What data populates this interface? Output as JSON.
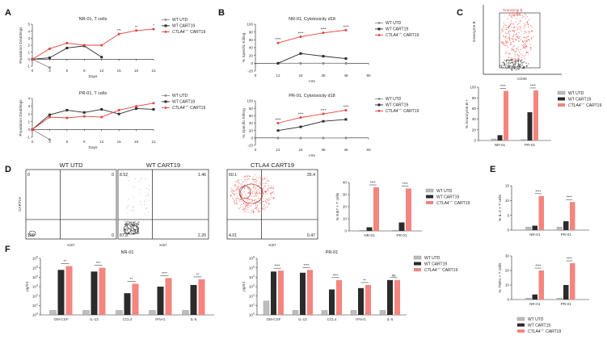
{
  "colors": {
    "utd": "#8a8a8a",
    "cart19": "#2b2b2b",
    "ctla4": "#e8413c",
    "ctla4_light": "#f4857f"
  },
  "panels": {
    "A": "A",
    "B": "B",
    "C": "C",
    "D": "D",
    "E": "E",
    "F": "F"
  },
  "legend_labels": {
    "utd": "WT UTD",
    "cart19": "WT CART19",
    "ctla4": "CTLA4",
    "ctla4_sup": "−/−",
    "ctla4_suffix": " CART19"
  },
  "chart_data": [
    {
      "id": "A1",
      "type": "line",
      "title": "NR-01, T cells",
      "xlabel": "Days",
      "ylabel": "Population Doublings",
      "x": [
        0,
        3,
        6,
        9,
        12,
        15,
        18,
        21
      ],
      "xticks": [
        0,
        3,
        6,
        9,
        12,
        15,
        18,
        21
      ],
      "ylim": [
        -1,
        5
      ],
      "yticks": [
        -1,
        0,
        1,
        2,
        3,
        4,
        5
      ],
      "series": [
        {
          "name": "WT UTD",
          "key": "utd",
          "x": [
            0,
            3
          ],
          "values": [
            0,
            -1.2
          ]
        },
        {
          "name": "WT CART19",
          "key": "cart19",
          "x": [
            0,
            3,
            6,
            9,
            12
          ],
          "values": [
            0,
            0.2,
            1.6,
            1.9,
            0.3
          ]
        },
        {
          "name": "CTLA4 CART19",
          "key": "ctla4",
          "x": [
            0,
            3,
            6,
            9,
            12,
            15,
            18,
            21
          ],
          "values": [
            0,
            1.5,
            2.3,
            2.0,
            2.0,
            3.6,
            4.1,
            4.3
          ]
        }
      ],
      "annotations": [
        "***",
        "**",
        "*"
      ]
    },
    {
      "id": "A2",
      "type": "line",
      "title": "PR-01, T cells",
      "xlabel": "Days",
      "ylabel": "Population Doublings",
      "xticks": [
        0,
        3,
        6,
        9,
        12,
        15,
        18,
        21
      ],
      "ylim": [
        -1,
        4
      ],
      "yticks": [
        -1,
        0,
        1,
        2,
        3,
        4
      ],
      "series": [
        {
          "name": "WT UTD",
          "key": "utd",
          "x": [
            0,
            3
          ],
          "values": [
            0,
            -1.3
          ]
        },
        {
          "name": "WT CART19",
          "key": "cart19",
          "x": [
            0,
            3,
            6,
            9,
            12,
            15,
            18,
            21
          ],
          "values": [
            0,
            1.9,
            2.5,
            2.2,
            2.6,
            2.0,
            2.7,
            2.6
          ]
        },
        {
          "name": "CTLA4 CART19",
          "key": "ctla4",
          "x": [
            0,
            3,
            6,
            9,
            12,
            15,
            18,
            21
          ],
          "values": [
            0,
            1.6,
            1.5,
            1.7,
            1.6,
            2.5,
            3.0,
            3.4
          ]
        }
      ]
    },
    {
      "id": "B1",
      "type": "line",
      "title": "NR-01, Cytotoxicity d18",
      "xlabel": "Hrs",
      "ylabel": "% Specific Killing",
      "xticks": [
        0,
        12,
        24,
        36,
        48,
        60
      ],
      "ylim": [
        -20,
        100
      ],
      "yticks": [
        -20,
        0,
        20,
        40,
        60,
        80,
        100
      ],
      "series": [
        {
          "name": "WT UTD",
          "key": "utd",
          "x": [
            12,
            24,
            36,
            48
          ],
          "values": [
            0,
            0,
            0,
            0
          ]
        },
        {
          "name": "WT CART19",
          "key": "cart19",
          "x": [
            12,
            24,
            36,
            48
          ],
          "values": [
            0,
            25,
            18,
            12
          ]
        },
        {
          "name": "CTLA4 CART19",
          "key": "ctla4",
          "x": [
            12,
            24,
            36,
            48
          ],
          "values": [
            52,
            68,
            78,
            85
          ]
        }
      ],
      "annotations": [
        "****",
        "****",
        "****",
        "****"
      ]
    },
    {
      "id": "B2",
      "type": "line",
      "title": "PR-01, Cytotoxicity d18",
      "xlabel": "Hrs",
      "ylabel": "% Specific Killing",
      "xticks": [
        0,
        12,
        24,
        36,
        48,
        60
      ],
      "ylim": [
        -20,
        100
      ],
      "yticks": [
        -20,
        0,
        20,
        40,
        60,
        80,
        100
      ],
      "series": [
        {
          "name": "WT UTD",
          "key": "utd",
          "x": [
            12,
            24,
            36,
            48
          ],
          "values": [
            0,
            0,
            0,
            0
          ]
        },
        {
          "name": "WT CART19",
          "key": "cart19",
          "x": [
            12,
            24,
            36,
            48
          ],
          "values": [
            20,
            30,
            45,
            50
          ]
        },
        {
          "name": "CTLA4 CART19",
          "key": "ctla4",
          "x": [
            12,
            24,
            36,
            48
          ],
          "values": [
            40,
            55,
            65,
            75
          ]
        }
      ],
      "annotations": [
        "****",
        "****",
        "****",
        "****"
      ]
    },
    {
      "id": "C",
      "type": "bar",
      "ylabel": "% Granzyme B +",
      "categories": [
        "NR-01",
        "PR-01"
      ],
      "ylim": [
        0,
        100
      ],
      "yticks": [
        0,
        20,
        40,
        60,
        80,
        100
      ],
      "series": [
        {
          "name": "WT UTD",
          "key": "utd",
          "values": [
            3,
            2
          ]
        },
        {
          "name": "WT CART19",
          "key": "cart19",
          "values": [
            10,
            53
          ]
        },
        {
          "name": "CTLA4 CART19",
          "key": "ctla4",
          "values": [
            93,
            94
          ]
        }
      ],
      "annotations": [
        "****",
        "****",
        "****",
        "****"
      ]
    },
    {
      "id": "D",
      "type": "bar",
      "ylabel": "% Ki67 + T cells",
      "categories": [
        "NR-01",
        "PR-01"
      ],
      "ylim": [
        0,
        40
      ],
      "yticks": [
        0,
        10,
        20,
        30,
        40
      ],
      "series": [
        {
          "name": "WT UTD",
          "key": "utd",
          "values": [
            0.5,
            0.5
          ]
        },
        {
          "name": "WT CART19",
          "key": "cart19",
          "values": [
            3,
            7
          ]
        },
        {
          "name": "CTLA4 CART19",
          "key": "ctla4",
          "values": [
            36,
            35
          ]
        }
      ],
      "annotations": [
        "****",
        "****"
      ]
    },
    {
      "id": "E1",
      "type": "bar",
      "ylabel": "% IL-2 + T cells",
      "categories": [
        "NR-01",
        "PR-01"
      ],
      "ylim": [
        0,
        15
      ],
      "yticks": [
        0,
        5,
        10,
        15
      ],
      "series": [
        {
          "name": "WT UTD",
          "key": "utd",
          "values": [
            1,
            1
          ]
        },
        {
          "name": "WT CART19",
          "key": "cart19",
          "values": [
            1.5,
            3
          ]
        },
        {
          "name": "CTLA4 CART19",
          "key": "ctla4",
          "values": [
            11.5,
            9.5
          ]
        }
      ],
      "annotations": [
        "****",
        "****"
      ]
    },
    {
      "id": "E2",
      "type": "bar",
      "ylabel": "% TNFα + T cells",
      "categories": [
        "NR-01",
        "PR-01"
      ],
      "ylim": [
        0,
        30
      ],
      "yticks": [
        0,
        10,
        20,
        30
      ],
      "series": [
        {
          "name": "WT UTD",
          "key": "utd",
          "values": [
            1,
            1
          ]
        },
        {
          "name": "WT CART19",
          "key": "cart19",
          "values": [
            3.5,
            10
          ]
        },
        {
          "name": "CTLA4 CART19",
          "key": "ctla4",
          "values": [
            20,
            25
          ]
        }
      ],
      "annotations": [
        "****",
        "****"
      ]
    },
    {
      "id": "F1",
      "type": "bar",
      "title": "NR-01",
      "ylabel": "pg/ml",
      "log": true,
      "categories": [
        "GM-CSF",
        "IL-13",
        "CCL4",
        "IFN-G",
        "IL-5"
      ],
      "ylim": [
        1,
        1000000
      ],
      "yticks": [
        "10^0",
        "10^1",
        "10^2",
        "10^3",
        "10^4",
        "10^5",
        "10^6"
      ],
      "series": [
        {
          "name": "WT UTD",
          "key": "utd",
          "values": [
            3,
            3,
            3,
            3,
            3
          ]
        },
        {
          "name": "WT CART19",
          "key": "cart19",
          "values": [
            60000,
            40000,
            200,
            1000,
            1500
          ]
        },
        {
          "name": "CTLA4 CART19",
          "key": "ctla4",
          "values": [
            150000,
            100000,
            2000,
            8000,
            6000
          ]
        }
      ],
      "annotations": [
        "**",
        "***",
        "**",
        "****",
        "**"
      ]
    },
    {
      "id": "F2",
      "type": "bar",
      "title": "PR-01",
      "ylabel": "pg/ml",
      "log": true,
      "categories": [
        "GM-CSF",
        "IL-13",
        "CCL4",
        "IFN-G",
        "IL-5"
      ],
      "ylim": [
        1,
        1000000
      ],
      "yticks": [
        "10^0",
        "10^1",
        "10^2",
        "10^3",
        "10^4",
        "10^5",
        "10^6"
      ],
      "series": [
        {
          "name": "WT UTD",
          "key": "utd",
          "values": [
            30,
            3,
            3,
            3,
            3
          ]
        },
        {
          "name": "WT CART19",
          "key": "cart19",
          "values": [
            40000,
            30000,
            500,
            700,
            5000
          ]
        },
        {
          "name": "CTLA4 CART19",
          "key": "ctla4",
          "values": [
            50000,
            60000,
            5000,
            1500,
            5000
          ]
        }
      ],
      "annotations": [
        "****",
        "****",
        "****",
        "**",
        "ns"
      ]
    }
  ],
  "flow_C": {
    "gate_label": "Granzyme B",
    "gate_label2": "CTLA4",
    "x_axis": "CD45",
    "y_axis": "Granzyme B"
  },
  "flow_D": {
    "y_axis": "CART19",
    "x_axis": "Ki67",
    "plots": [
      {
        "title": "WT UTD",
        "q": [
          "0",
          "0",
          "100",
          "0"
        ]
      },
      {
        "title": "WT CART19",
        "q": [
          "8.52",
          "1.46",
          "87.8",
          "2.20"
        ]
      },
      {
        "title": "CTLA4 CART19",
        "q": [
          "60.1",
          "35.4",
          "4.01",
          "0.47"
        ]
      }
    ]
  }
}
